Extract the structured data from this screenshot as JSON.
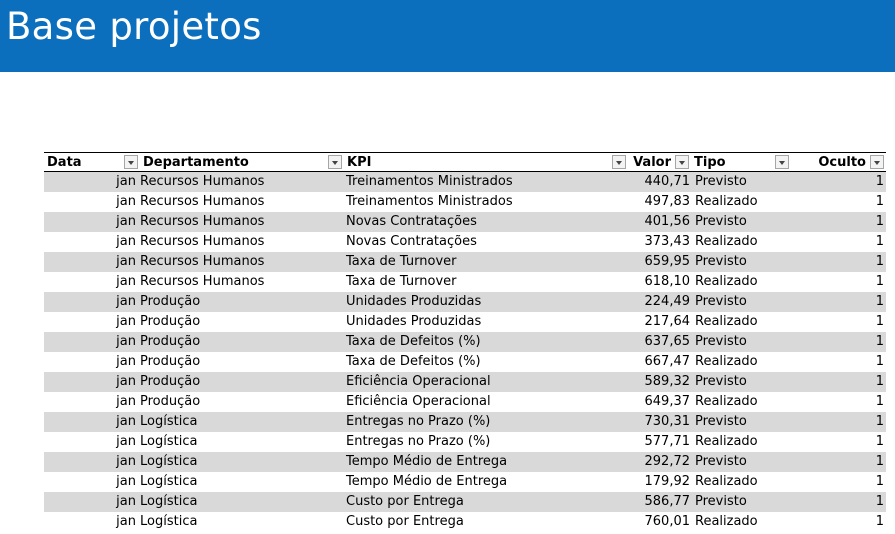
{
  "banner": {
    "title": "Base projetos",
    "color": "#0b6fbe"
  },
  "table": {
    "columns": [
      "Data",
      "Departamento",
      "KPI",
      "Valor",
      "Tipo",
      "Oculto"
    ],
    "rows": [
      [
        "jan",
        "Recursos Humanos",
        "Treinamentos Ministrados",
        "440,71",
        "Previsto",
        "1"
      ],
      [
        "jan",
        "Recursos Humanos",
        "Treinamentos Ministrados",
        "497,83",
        "Realizado",
        "1"
      ],
      [
        "jan",
        "Recursos Humanos",
        "Novas Contratações",
        "401,56",
        "Previsto",
        "1"
      ],
      [
        "jan",
        "Recursos Humanos",
        "Novas Contratações",
        "373,43",
        "Realizado",
        "1"
      ],
      [
        "jan",
        "Recursos Humanos",
        "Taxa de Turnover",
        "659,95",
        "Previsto",
        "1"
      ],
      [
        "jan",
        "Recursos Humanos",
        "Taxa de Turnover",
        "618,10",
        "Realizado",
        "1"
      ],
      [
        "jan",
        "Produção",
        "Unidades Produzidas",
        "224,49",
        "Previsto",
        "1"
      ],
      [
        "jan",
        "Produção",
        "Unidades Produzidas",
        "217,64",
        "Realizado",
        "1"
      ],
      [
        "jan",
        "Produção",
        "Taxa de Defeitos (%)",
        "637,65",
        "Previsto",
        "1"
      ],
      [
        "jan",
        "Produção",
        "Taxa de Defeitos (%)",
        "667,47",
        "Realizado",
        "1"
      ],
      [
        "jan",
        "Produção",
        "Eficiência Operacional",
        "589,32",
        "Previsto",
        "1"
      ],
      [
        "jan",
        "Produção",
        "Eficiência Operacional",
        "649,37",
        "Realizado",
        "1"
      ],
      [
        "jan",
        "Logística",
        "Entregas no Prazo (%)",
        "730,31",
        "Previsto",
        "1"
      ],
      [
        "jan",
        "Logística",
        "Entregas no Prazo (%)",
        "577,71",
        "Realizado",
        "1"
      ],
      [
        "jan",
        "Logística",
        "Tempo Médio de Entrega",
        "292,72",
        "Previsto",
        "1"
      ],
      [
        "jan",
        "Logística",
        "Tempo Médio de Entrega",
        "179,92",
        "Realizado",
        "1"
      ],
      [
        "jan",
        "Logística",
        "Custo por Entrega",
        "586,77",
        "Previsto",
        "1"
      ],
      [
        "jan",
        "Logística",
        "Custo por Entrega",
        "760,01",
        "Realizado",
        "1"
      ]
    ]
  }
}
